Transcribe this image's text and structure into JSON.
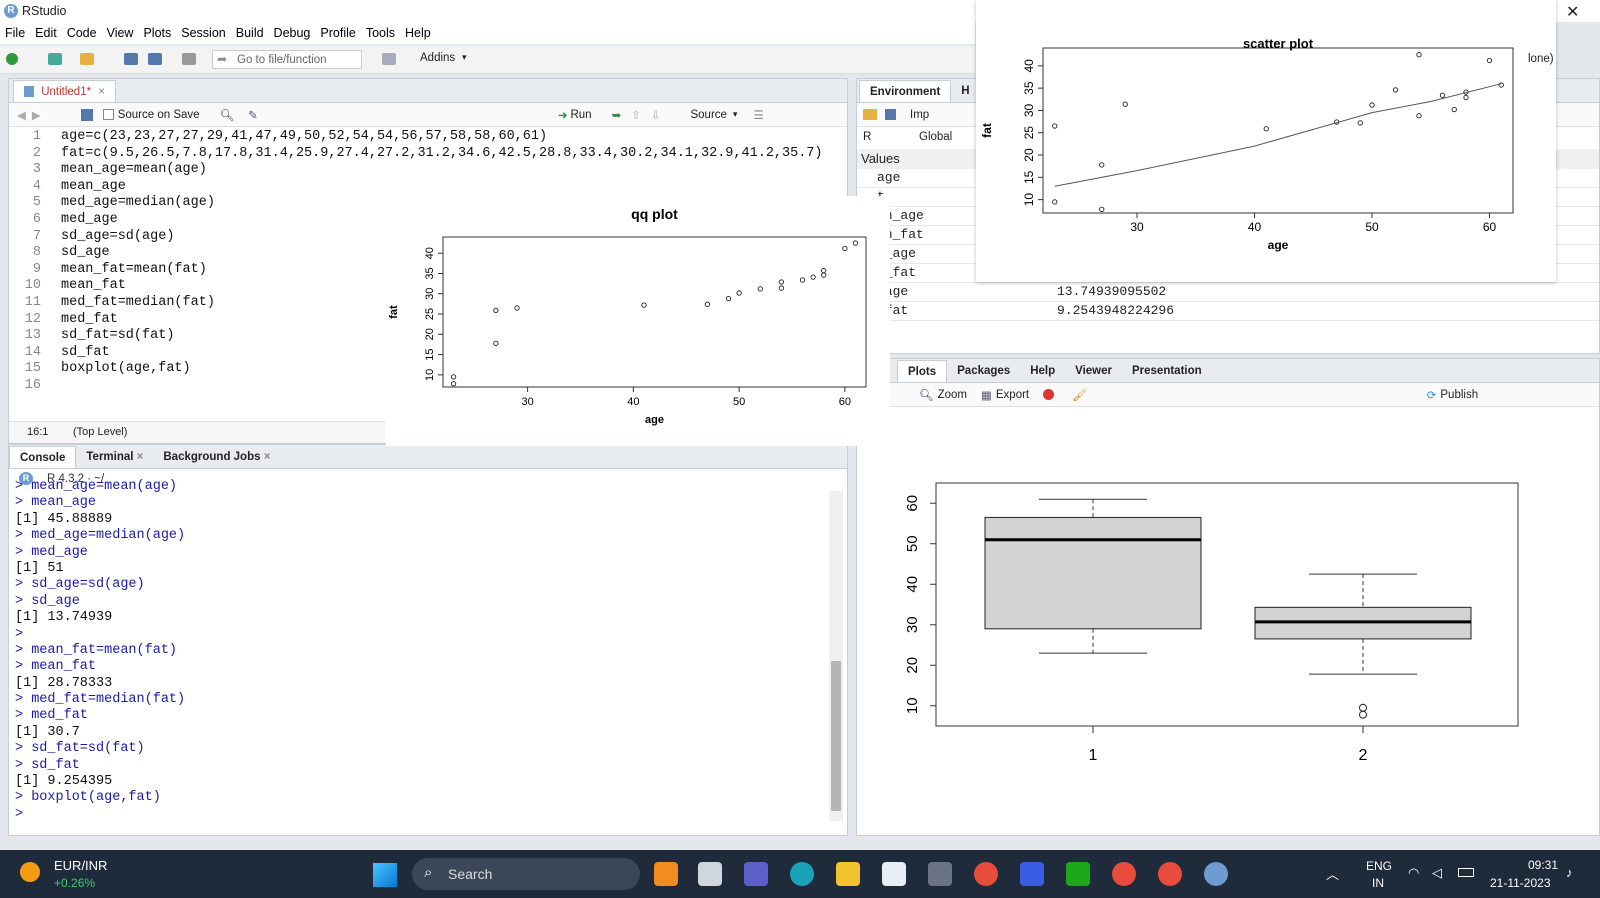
{
  "window": {
    "title": "RStudio",
    "close_glyph": "✕"
  },
  "menu": [
    "File",
    "Edit",
    "Code",
    "View",
    "Plots",
    "Session",
    "Build",
    "Debug",
    "Profile",
    "Tools",
    "Help"
  ],
  "toolbar": {
    "goto_placeholder": "Go to file/function",
    "addins": "Addins",
    "project": "lone)"
  },
  "editor": {
    "tab": "Untitled1*",
    "source_on_save": "Source on Save",
    "run": "Run",
    "source": "Source",
    "position": "16:1",
    "scope": "(Top Level)",
    "lines": [
      "age=c(23,23,27,27,29,41,47,49,50,52,54,54,56,57,58,58,60,61)",
      "fat=c(9.5,26.5,7.8,17.8,31.4,25.9,27.4,27.2,31.2,34.6,42.5,28.8,33.4,30.2,34.1,32.9,41.2,35.7)",
      "mean_age=mean(age)",
      "mean_age",
      "med_age=median(age)",
      "med_age",
      "sd_age=sd(age)",
      "sd_age",
      "mean_fat=mean(fat)",
      "mean_fat",
      "med_fat=median(fat)",
      "med_fat",
      "sd_fat=sd(fat)",
      "sd_fat",
      "boxplot(age,fat)",
      ""
    ]
  },
  "environment": {
    "tab": "Environment",
    "tab2": "H",
    "imp": "Imp",
    "r_label": "R",
    "global": "Global",
    "section": "Values",
    "rows": [
      {
        "name": "age",
        "value": ""
      },
      {
        "name": "t",
        "value": ""
      },
      {
        "name": "an_age",
        "value": ""
      },
      {
        "name": "an_fat",
        "value": ""
      },
      {
        "name": "d_age",
        "value": ""
      },
      {
        "name": "d_fat",
        "value": ""
      },
      {
        "name": "_age",
        "value": "13.74939095502"
      },
      {
        "name": "_fat",
        "value": "9.2543948224296"
      }
    ]
  },
  "console": {
    "tabs": [
      "Console",
      "Terminal",
      "Background Jobs"
    ],
    "version": "R 4.3.2 · ~/",
    "lines": [
      {
        "t": "cmd",
        "s": "> mean_age=mean(age)"
      },
      {
        "t": "cmd",
        "s": "> mean_age"
      },
      {
        "t": "out",
        "s": "[1] 45.88889"
      },
      {
        "t": "cmd",
        "s": "> med_age=median(age)"
      },
      {
        "t": "cmd",
        "s": "> med_age"
      },
      {
        "t": "out",
        "s": "[1] 51"
      },
      {
        "t": "cmd",
        "s": "> sd_age=sd(age)"
      },
      {
        "t": "cmd",
        "s": "> sd_age"
      },
      {
        "t": "out",
        "s": "[1] 13.74939"
      },
      {
        "t": "cmd",
        "s": ">"
      },
      {
        "t": "cmd",
        "s": "> mean_fat=mean(fat)"
      },
      {
        "t": "cmd",
        "s": "> mean_fat"
      },
      {
        "t": "out",
        "s": "[1] 28.78333"
      },
      {
        "t": "cmd",
        "s": "> med_fat=median(fat)"
      },
      {
        "t": "cmd",
        "s": "> med_fat"
      },
      {
        "t": "out",
        "s": "[1] 30.7"
      },
      {
        "t": "cmd",
        "s": "> sd_fat=sd(fat)"
      },
      {
        "t": "cmd",
        "s": "> sd_fat"
      },
      {
        "t": "out",
        "s": "[1] 9.254395"
      },
      {
        "t": "cmd",
        "s": "> boxplot(age,fat)"
      },
      {
        "t": "cmd",
        "s": ">"
      }
    ]
  },
  "plots_pane": {
    "tabs": [
      "Plots",
      "Packages",
      "Help",
      "Viewer",
      "Presentation"
    ],
    "zoom": "Zoom",
    "export": "Export",
    "publish": "Publish"
  },
  "chart_data": [
    {
      "type": "scatter",
      "title": "qq plot",
      "xlabel": "age",
      "ylabel": "fat",
      "xlim": [
        22,
        62
      ],
      "ylim": [
        7,
        44
      ],
      "xticks": [
        30,
        40,
        50,
        60
      ],
      "yticks": [
        10,
        15,
        20,
        25,
        30,
        35,
        40
      ],
      "points": [
        [
          23,
          7.8
        ],
        [
          23,
          9.5
        ],
        [
          27,
          17.8
        ],
        [
          27,
          25.9
        ],
        [
          29,
          26.5
        ],
        [
          41,
          27.2
        ],
        [
          47,
          27.4
        ],
        [
          49,
          28.8
        ],
        [
          50,
          30.2
        ],
        [
          52,
          31.2
        ],
        [
          54,
          31.4
        ],
        [
          54,
          32.9
        ],
        [
          56,
          33.4
        ],
        [
          57,
          34.1
        ],
        [
          58,
          34.6
        ],
        [
          58,
          35.7
        ],
        [
          60,
          41.2
        ],
        [
          61,
          42.5
        ]
      ]
    },
    {
      "type": "scatter",
      "title": "scatter plot",
      "xlabel": "age",
      "ylabel": "fat",
      "xlim": [
        22,
        62
      ],
      "ylim": [
        7,
        44
      ],
      "xticks": [
        30,
        40,
        50,
        60
      ],
      "yticks": [
        10,
        15,
        20,
        25,
        30,
        35,
        40
      ],
      "points": [
        [
          23,
          9.5
        ],
        [
          23,
          26.5
        ],
        [
          27,
          7.8
        ],
        [
          27,
          17.8
        ],
        [
          29,
          31.4
        ],
        [
          41,
          25.9
        ],
        [
          47,
          27.4
        ],
        [
          49,
          27.2
        ],
        [
          50,
          31.2
        ],
        [
          52,
          34.6
        ],
        [
          54,
          42.5
        ],
        [
          54,
          28.8
        ],
        [
          56,
          33.4
        ],
        [
          57,
          30.2
        ],
        [
          58,
          34.1
        ],
        [
          58,
          32.9
        ],
        [
          60,
          41.2
        ],
        [
          61,
          35.7
        ]
      ],
      "smooth": [
        [
          23,
          13
        ],
        [
          30,
          16.5
        ],
        [
          40,
          22
        ],
        [
          50,
          29.5
        ],
        [
          55,
          32
        ],
        [
          61,
          36
        ]
      ]
    },
    {
      "type": "box",
      "title": "",
      "xlabel": "",
      "ylabel": "",
      "ylim": [
        5,
        65
      ],
      "yticks": [
        10,
        20,
        30,
        40,
        50,
        60
      ],
      "categories": [
        "1",
        "2"
      ],
      "boxes": [
        {
          "min": 23,
          "q1": 29,
          "median": 51,
          "q3": 56.5,
          "max": 61,
          "outliers": []
        },
        {
          "min": 17.8,
          "q1": 26.5,
          "median": 30.7,
          "q3": 34.3,
          "max": 42.5,
          "outliers": [
            7.8,
            9.5
          ]
        }
      ]
    }
  ],
  "taskbar": {
    "ticker": "EUR/INR",
    "change": "+0.26%",
    "search": "Search",
    "lang1": "ENG",
    "lang2": "IN",
    "time": "09:31",
    "date": "21-11-2023"
  }
}
